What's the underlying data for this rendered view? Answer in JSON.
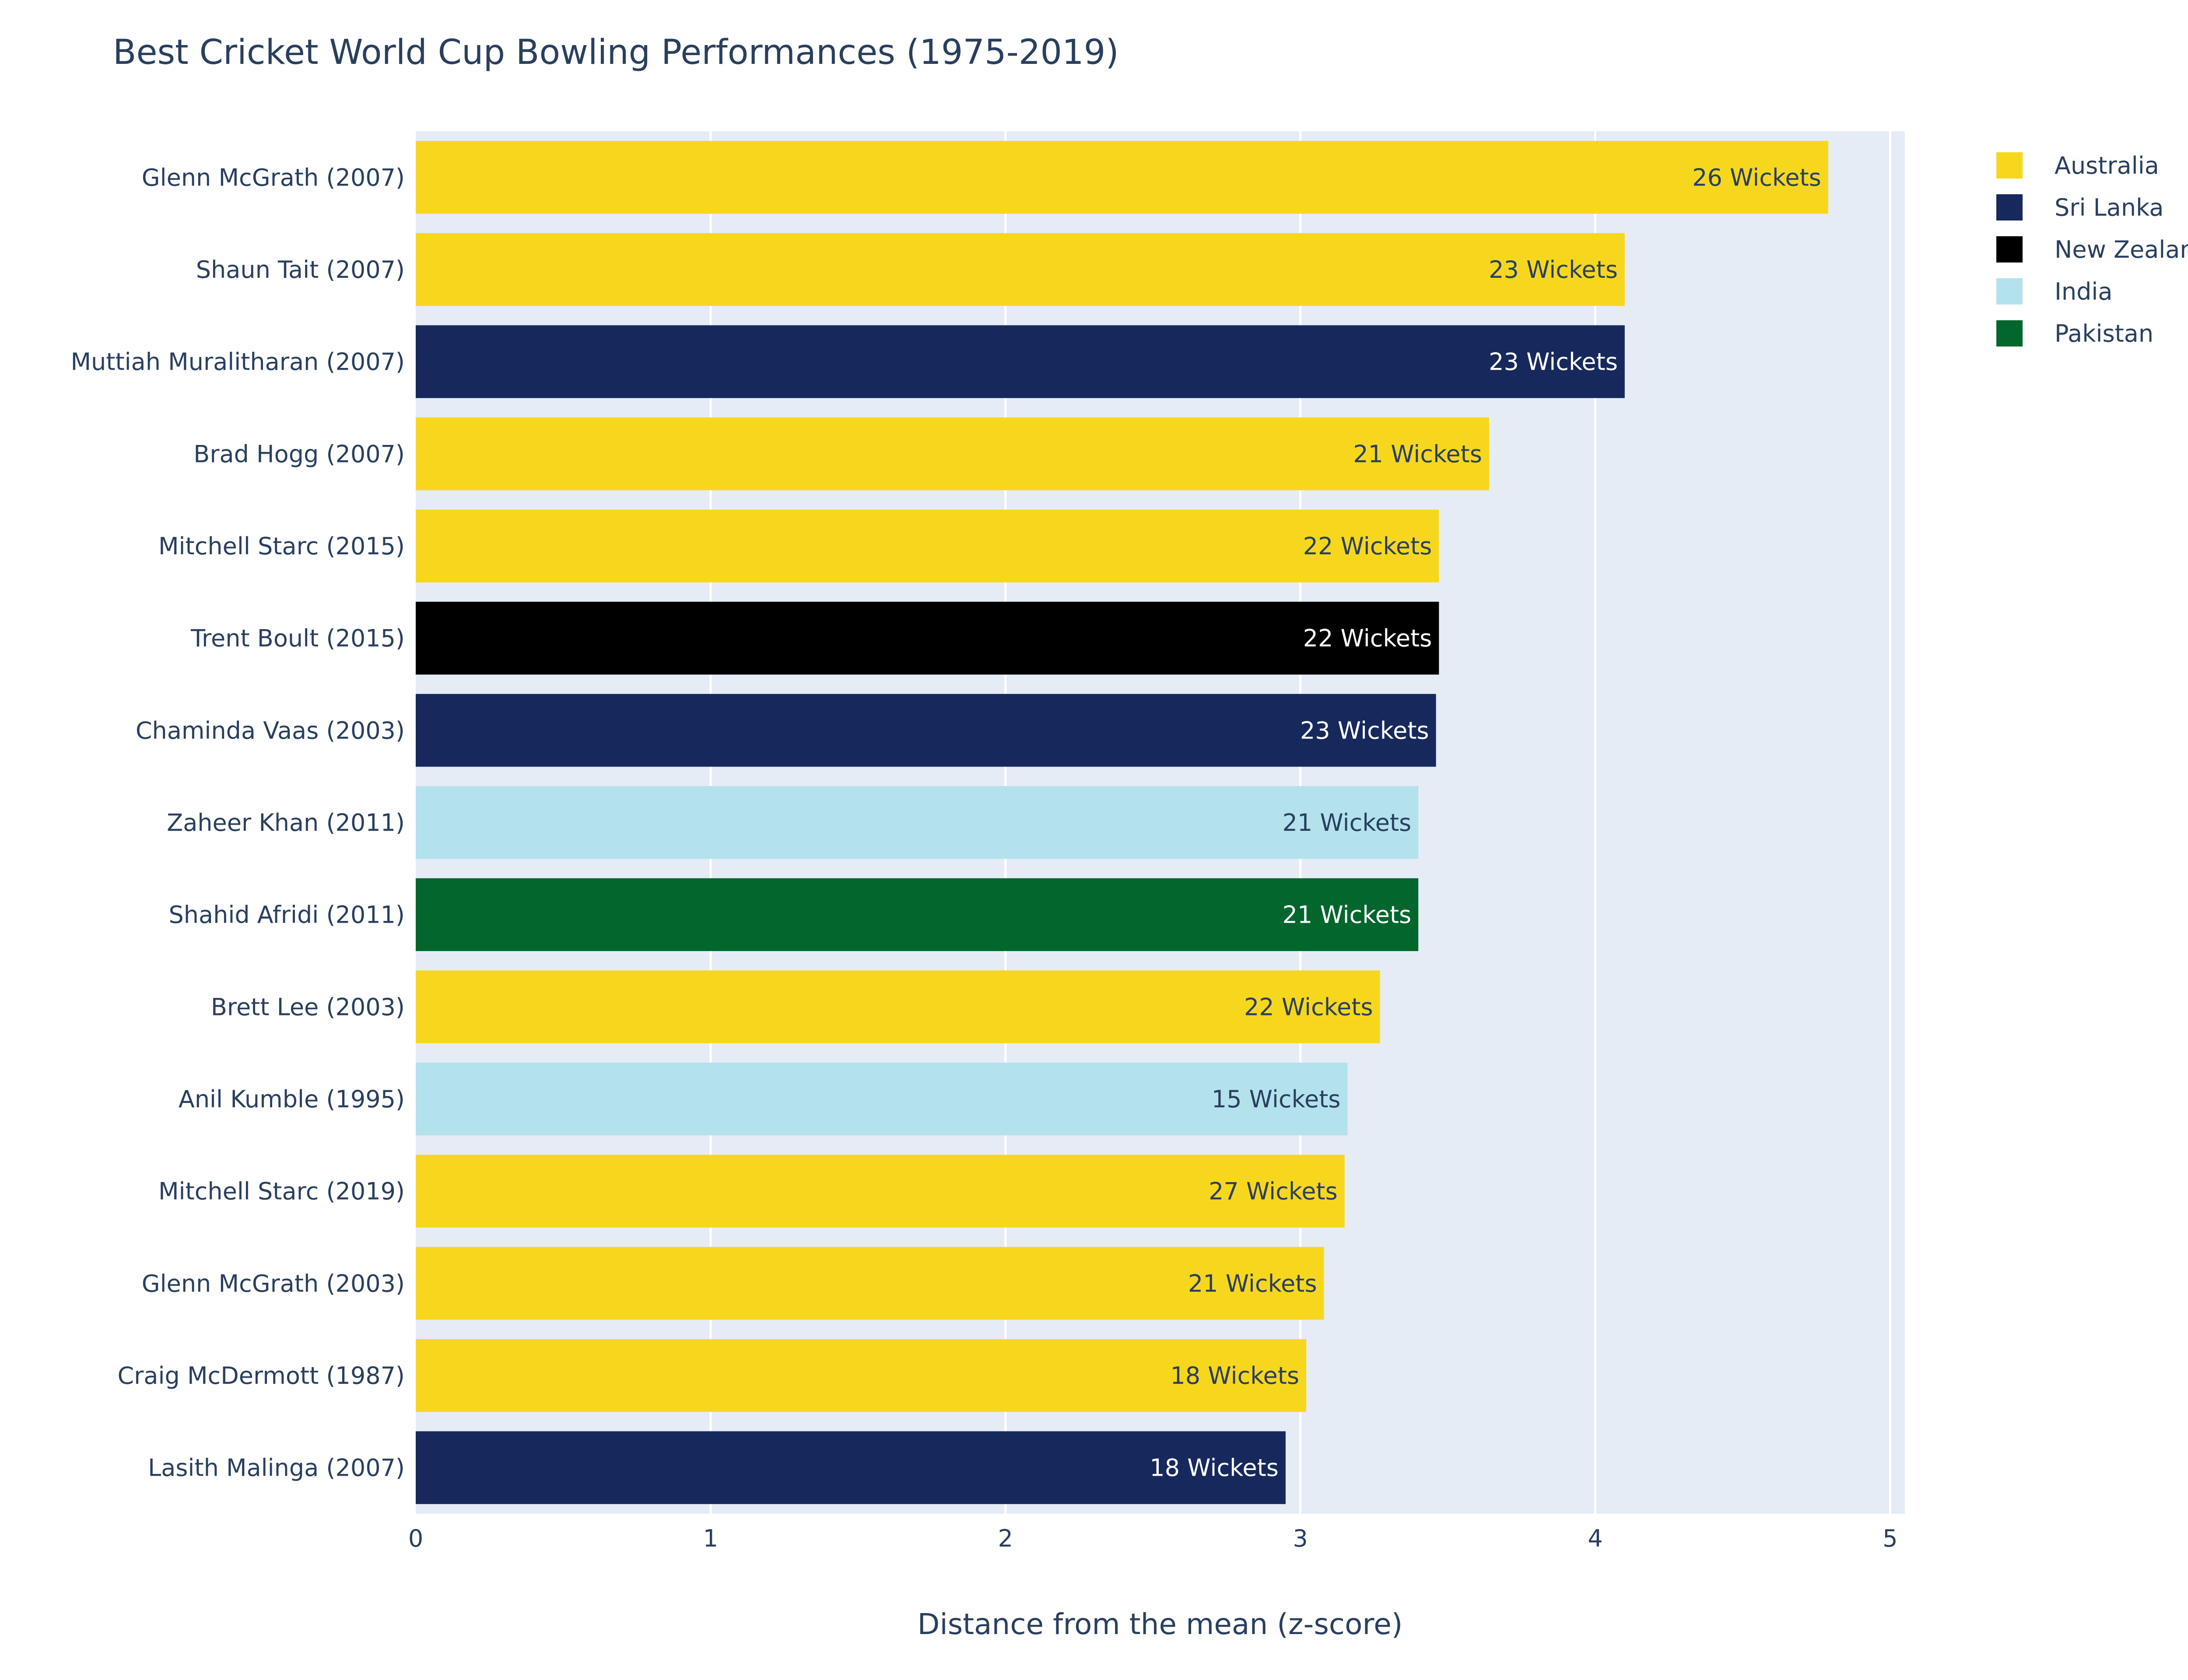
{
  "chart_data": {
    "type": "bar",
    "orientation": "horizontal",
    "title": "Best Cricket World Cup Bowling Performances (1975-2019)",
    "xlabel": "Distance from the mean (z-score)",
    "ylabel": "",
    "xlim": [
      0,
      5.05
    ],
    "xticks": [
      0,
      1,
      2,
      3,
      4,
      5
    ],
    "grid": true,
    "legend_position": "top-right",
    "plot_bg": "#e5ecf6",
    "colors": {
      "Australia": "#f7d71e",
      "Sri Lanka": "#17295c",
      "New Zealand": "#000000",
      "India": "#b3e2ec",
      "Pakistan": "#02662d"
    },
    "text_colors": {
      "Australia": "#2a3f5f",
      "Sri Lanka": "#ffffff",
      "New Zealand": "#ffffff",
      "India": "#2a3f5f",
      "Pakistan": "#ffffff"
    },
    "legend": [
      "Australia",
      "Sri Lanka",
      "New Zealand",
      "India",
      "Pakistan"
    ],
    "categories": [
      "Glenn McGrath (2007)",
      "Shaun Tait (2007)",
      "Muttiah Muralitharan (2007)",
      "Brad Hogg (2007)",
      "Mitchell Starc (2015)",
      "Trent Boult (2015)",
      "Chaminda Vaas (2003)",
      "Zaheer Khan (2011)",
      "Shahid Afridi (2011)",
      "Brett Lee (2003)",
      "Anil Kumble (1995)",
      "Mitchell Starc (2019)",
      "Glenn McGrath (2003)",
      "Craig McDermott (1987)",
      "Lasith Malinga (2007)"
    ],
    "values": [
      4.79,
      4.1,
      4.1,
      3.64,
      3.47,
      3.47,
      3.46,
      3.4,
      3.4,
      3.27,
      3.16,
      3.15,
      3.08,
      3.02,
      2.95
    ],
    "countries": [
      "Australia",
      "Australia",
      "Sri Lanka",
      "Australia",
      "Australia",
      "New Zealand",
      "Sri Lanka",
      "India",
      "Pakistan",
      "Australia",
      "India",
      "Australia",
      "Australia",
      "Australia",
      "Sri Lanka"
    ],
    "bar_labels": [
      "26 Wickets",
      "23 Wickets",
      "23 Wickets",
      "21 Wickets",
      "22 Wickets",
      "22 Wickets",
      "23 Wickets",
      "21 Wickets",
      "21 Wickets",
      "22 Wickets",
      "15 Wickets",
      "27 Wickets",
      "21 Wickets",
      "18 Wickets",
      "18 Wickets"
    ]
  }
}
